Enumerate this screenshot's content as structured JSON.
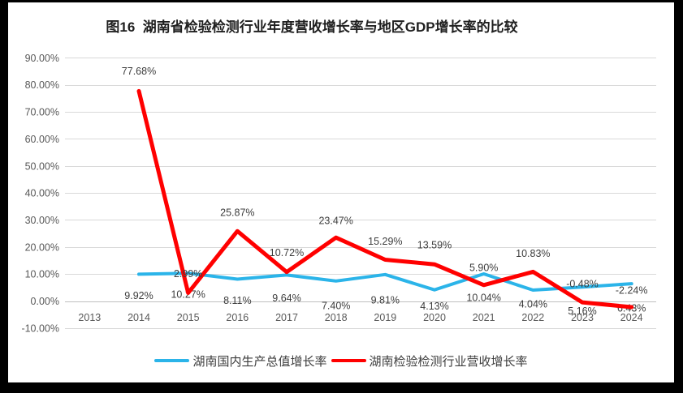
{
  "chart_data": {
    "type": "line",
    "title": "图16  湖南省检验检测行业年度营收增长率与地区GDP增长率的比较",
    "categories": [
      "2013",
      "2014",
      "2015",
      "2016",
      "2017",
      "2018",
      "2019",
      "2020",
      "2021",
      "2022",
      "2023",
      "2024"
    ],
    "series": [
      {
        "name": "湖南国内生产总值增长率",
        "color": "#2BB4E9",
        "label_position": "below",
        "values": [
          null,
          9.92,
          10.27,
          8.11,
          9.64,
          7.4,
          9.81,
          4.13,
          10.04,
          4.04,
          5.16,
          6.43
        ],
        "labels": [
          null,
          "9.92%",
          "10.27%",
          "8.11%",
          "9.64%",
          "7.40%",
          "9.81%",
          "4.13%",
          "10.04%",
          "4.04%",
          "5.16%",
          "6.43%"
        ],
        "label_dy": [
          null,
          26,
          26,
          26,
          28,
          30,
          31,
          20,
          29,
          17,
          29,
          30
        ]
      },
      {
        "name": "湖南检验检测行业营收增长率",
        "color": "#FF0000",
        "label_position": "above",
        "values": [
          null,
          77.68,
          2.99,
          25.87,
          10.72,
          23.47,
          15.29,
          13.59,
          5.9,
          10.83,
          -0.48,
          -2.24
        ],
        "labels": [
          null,
          "77.68%",
          "2.99%",
          "25.87%",
          "10.72%",
          "23.47%",
          "15.29%",
          "13.59%",
          "5.90%",
          "10.83%",
          "-0.48%",
          "-2.24%"
        ],
        "label_dy": [
          null,
          -25,
          -24,
          -23,
          -24,
          -21,
          -23,
          -24,
          -22,
          -23,
          -23,
          -21
        ]
      }
    ],
    "y_axis": {
      "min": -10,
      "max": 90,
      "step": 10,
      "tick_labels": [
        "90.00%",
        "80.00%",
        "70.00%",
        "60.00%",
        "50.00%",
        "40.00%",
        "30.00%",
        "20.00%",
        "10.00%",
        "0.00%",
        "-10.00%"
      ]
    },
    "grid": true,
    "legend_position": "bottom",
    "colors": {
      "background": "#FFFFFF",
      "frame": "#000000",
      "gridline": "#D9D9D9",
      "zero_axis": "#BFBFBF",
      "tick_label": "#595959",
      "data_label": "#3D3D3D"
    }
  }
}
